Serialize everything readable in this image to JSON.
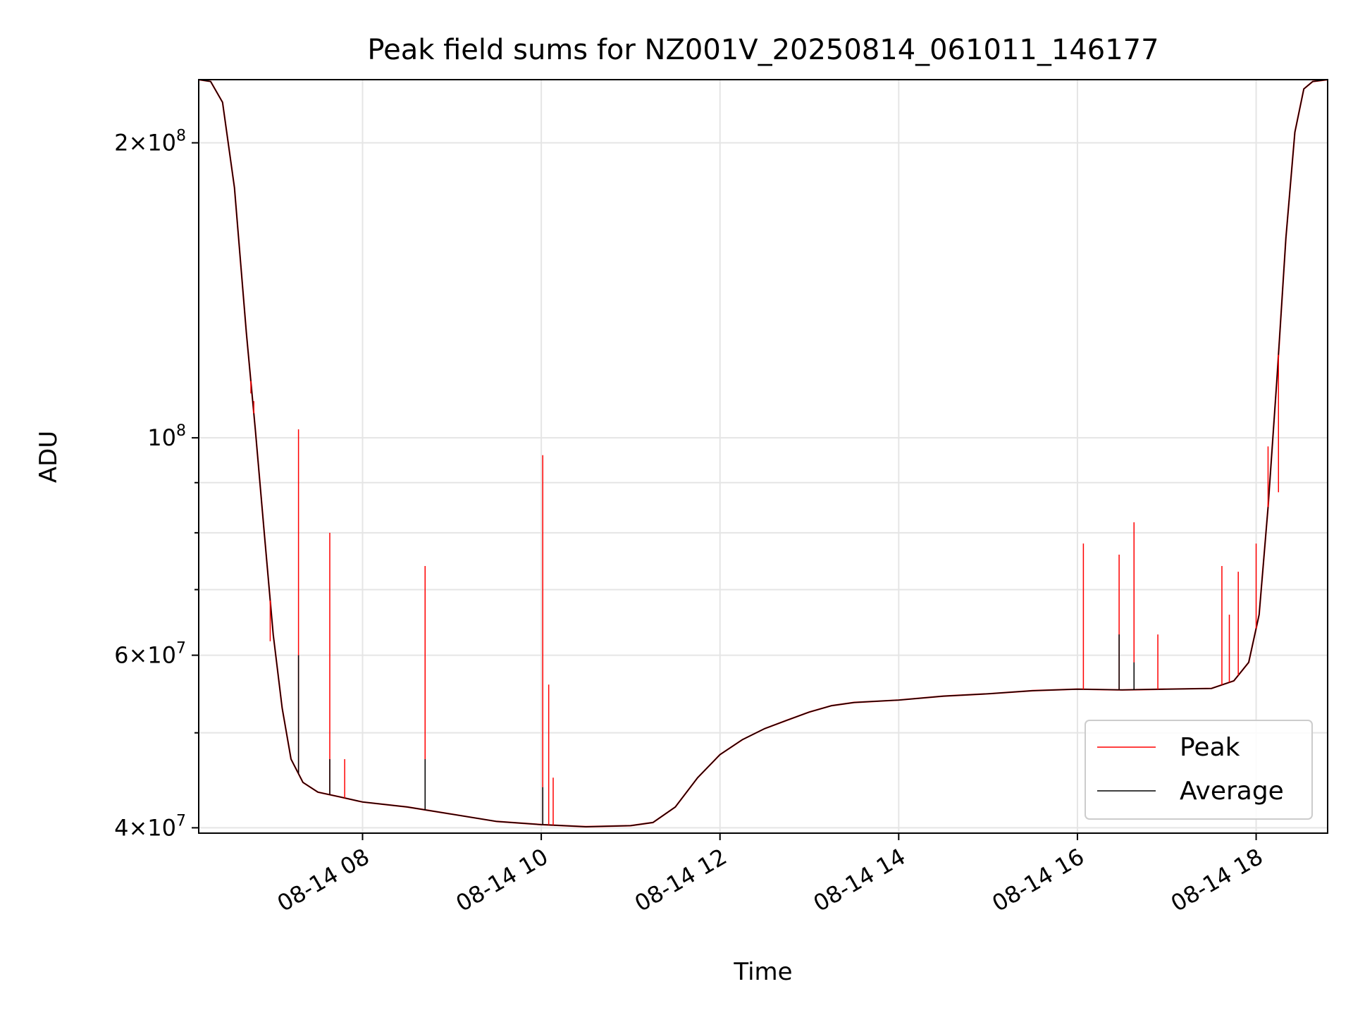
{
  "chart_data": {
    "type": "line",
    "title": "Peak field sums for NZ001V_20250814_061011_146177",
    "xlabel": "Time",
    "ylabel": "ADU",
    "yscale": "log",
    "xlim": [
      "2025-08-14T06:10",
      "2025-08-14T18:48"
    ],
    "ylim": [
      39500000,
      232000000
    ],
    "grid": true,
    "legend_position": "lower-right",
    "x_ticks": [
      {
        "value": "2025-08-14T08:00",
        "label": "08-14 08"
      },
      {
        "value": "2025-08-14T10:00",
        "label": "08-14 10"
      },
      {
        "value": "2025-08-14T12:00",
        "label": "08-14 12"
      },
      {
        "value": "2025-08-14T14:00",
        "label": "08-14 14"
      },
      {
        "value": "2025-08-14T16:00",
        "label": "08-14 16"
      },
      {
        "value": "2025-08-14T18:00",
        "label": "08-14 18"
      }
    ],
    "y_ticks": [
      {
        "value": 40000000,
        "base": "4",
        "exp": "7"
      },
      {
        "value": 60000000,
        "base": "6",
        "exp": "7"
      },
      {
        "value": 100000000,
        "base": "10",
        "exp": "8"
      },
      {
        "value": 200000000,
        "base": "2",
        "exp": "8"
      }
    ],
    "y_minor_ticks": [
      50000000,
      70000000,
      80000000,
      90000000
    ],
    "series": [
      {
        "name": "Peak",
        "color": "#ff0000"
      },
      {
        "name": "Average",
        "color": "#000000"
      }
    ],
    "baseline": {
      "x": [
        "2025-08-14T06:10",
        "2025-08-14T06:18",
        "2025-08-14T06:26",
        "2025-08-14T06:34",
        "2025-08-14T06:42",
        "2025-08-14T06:48",
        "2025-08-14T06:54",
        "2025-08-14T07:00",
        "2025-08-14T07:06",
        "2025-08-14T07:12",
        "2025-08-14T07:20",
        "2025-08-14T07:30",
        "2025-08-14T07:45",
        "2025-08-14T08:00",
        "2025-08-14T08:30",
        "2025-08-14T09:00",
        "2025-08-14T09:30",
        "2025-08-14T10:00",
        "2025-08-14T10:30",
        "2025-08-14T11:00",
        "2025-08-14T11:15",
        "2025-08-14T11:30",
        "2025-08-14T11:45",
        "2025-08-14T12:00",
        "2025-08-14T12:15",
        "2025-08-14T12:30",
        "2025-08-14T12:45",
        "2025-08-14T13:00",
        "2025-08-14T13:15",
        "2025-08-14T13:30",
        "2025-08-14T14:00",
        "2025-08-14T14:30",
        "2025-08-14T15:00",
        "2025-08-14T15:30",
        "2025-08-14T16:00",
        "2025-08-14T16:30",
        "2025-08-14T17:00",
        "2025-08-14T17:30",
        "2025-08-14T17:45",
        "2025-08-14T17:55",
        "2025-08-14T18:02",
        "2025-08-14T18:08",
        "2025-08-14T18:14",
        "2025-08-14T18:20",
        "2025-08-14T18:26",
        "2025-08-14T18:32",
        "2025-08-14T18:38",
        "2025-08-14T18:48"
      ],
      "y": [
        232000000,
        231000000,
        220000000,
        180000000,
        128000000,
        102000000,
        80000000,
        63000000,
        53000000,
        47000000,
        44500000,
        43500000,
        43000000,
        42500000,
        42000000,
        41300000,
        40600000,
        40300000,
        40100000,
        40200000,
        40500000,
        42000000,
        45000000,
        47500000,
        49200000,
        50500000,
        51500000,
        52500000,
        53300000,
        53700000,
        54000000,
        54500000,
        54800000,
        55200000,
        55400000,
        55300000,
        55400000,
        55500000,
        56500000,
        59000000,
        66000000,
        85000000,
        115000000,
        160000000,
        205000000,
        227000000,
        231000000,
        232000000
      ]
    },
    "peak_spikes": [
      {
        "x": "2025-08-14T06:45",
        "y": 111000000
      },
      {
        "x": "2025-08-14T06:47",
        "y": 109000000
      },
      {
        "x": "2025-08-14T06:58",
        "y": 62000000
      },
      {
        "x": "2025-08-14T07:17",
        "y": 102000000
      },
      {
        "x": "2025-08-14T07:38",
        "y": 80000000
      },
      {
        "x": "2025-08-14T07:48",
        "y": 47000000
      },
      {
        "x": "2025-08-14T08:42",
        "y": 74000000
      },
      {
        "x": "2025-08-14T10:01",
        "y": 96000000
      },
      {
        "x": "2025-08-14T10:05",
        "y": 56000000
      },
      {
        "x": "2025-08-14T10:08",
        "y": 45000000
      },
      {
        "x": "2025-08-14T16:04",
        "y": 78000000
      },
      {
        "x": "2025-08-14T16:28",
        "y": 76000000
      },
      {
        "x": "2025-08-14T16:38",
        "y": 82000000
      },
      {
        "x": "2025-08-14T16:54",
        "y": 63000000
      },
      {
        "x": "2025-08-14T17:37",
        "y": 74000000
      },
      {
        "x": "2025-08-14T17:42",
        "y": 66000000
      },
      {
        "x": "2025-08-14T17:48",
        "y": 73000000
      },
      {
        "x": "2025-08-14T18:00",
        "y": 78000000
      },
      {
        "x": "2025-08-14T18:08",
        "y": 98000000
      },
      {
        "x": "2025-08-14T18:15",
        "y": 88000000
      }
    ],
    "average_spikes": [
      {
        "x": "2025-08-14T07:17",
        "y": 60000000
      },
      {
        "x": "2025-08-14T07:38",
        "y": 47000000
      },
      {
        "x": "2025-08-14T08:42",
        "y": 47000000
      },
      {
        "x": "2025-08-14T10:01",
        "y": 44000000
      },
      {
        "x": "2025-08-14T16:28",
        "y": 63000000
      },
      {
        "x": "2025-08-14T16:38",
        "y": 59000000
      }
    ]
  }
}
